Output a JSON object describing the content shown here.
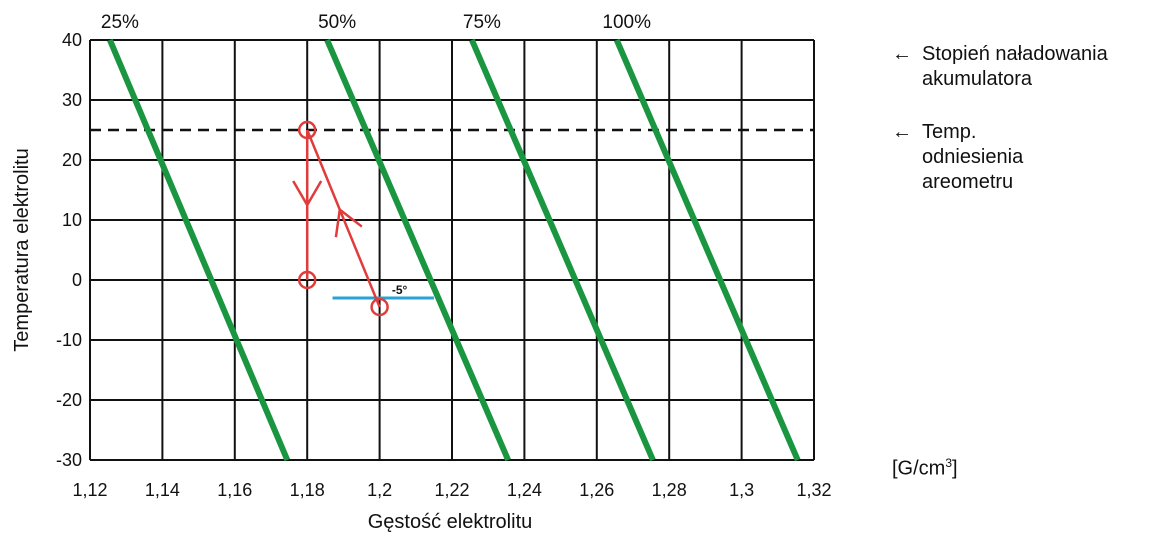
{
  "chart_data": {
    "type": "line",
    "xlabel": "Gęstość elektrolitu",
    "ylabel": "Temperatura elektrolitu",
    "xlim": [
      1.12,
      1.32
    ],
    "ylim": [
      -30,
      40
    ],
    "xticks": [
      1.12,
      1.14,
      1.16,
      1.18,
      1.2,
      1.22,
      1.24,
      1.26,
      1.28,
      1.3,
      1.32
    ],
    "xtick_labels": [
      "1,12",
      "1,14",
      "1,16",
      "1,18",
      "1,2",
      "1,22",
      "1,24",
      "1,26",
      "1,28",
      "1,3",
      "1,32"
    ],
    "yticks": [
      40,
      30,
      20,
      10,
      0,
      -10,
      -20,
      -30
    ],
    "ytick_labels": [
      "40",
      "30",
      "20",
      "10",
      "0",
      "-10",
      "-20",
      "-30"
    ],
    "grid": true,
    "series": [
      {
        "name": "25%",
        "color": "#1a9641",
        "x": [
          1.1255,
          1.1745
        ],
        "y": [
          40,
          -30
        ]
      },
      {
        "name": "50%",
        "color": "#1a9641",
        "x": [
          1.1855,
          1.2355
        ],
        "y": [
          40,
          -30
        ]
      },
      {
        "name": "75%",
        "color": "#1a9641",
        "x": [
          1.2255,
          1.2755
        ],
        "y": [
          40,
          -30
        ]
      },
      {
        "name": "100%",
        "color": "#1a9641",
        "x": [
          1.2655,
          1.3155
        ],
        "y": [
          40,
          -30
        ]
      }
    ],
    "reference_line": {
      "y": 25,
      "style": "dashed",
      "color": "#111111"
    },
    "temperature_marker": {
      "label": "-5°",
      "y": -3,
      "x": [
        1.187,
        1.215
      ],
      "color": "#29a3d6"
    },
    "example_points": [
      {
        "x": 1.18,
        "y": 25
      },
      {
        "x": 1.18,
        "y": 0
      },
      {
        "x": 1.2,
        "y": -4.5
      }
    ],
    "example_color": "#e03c3c"
  },
  "annotations": {
    "charge_label_line1": "Stopień naładowania",
    "charge_label_line2": "akumulatora",
    "temp_label_line1": "Temp.",
    "temp_label_line2": "odniesienia",
    "temp_label_line3": "areometru",
    "arrow": "←",
    "unit_label": "[G/cm",
    "unit_superscript": "3",
    "unit_close": "]"
  }
}
